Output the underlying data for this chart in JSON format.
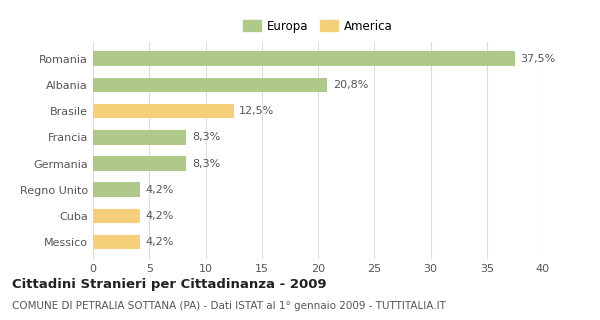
{
  "categories": [
    "Romania",
    "Albania",
    "Brasile",
    "Francia",
    "Germania",
    "Regno Unito",
    "Cuba",
    "Messico"
  ],
  "values": [
    37.5,
    20.8,
    12.5,
    8.3,
    8.3,
    4.2,
    4.2,
    4.2
  ],
  "labels": [
    "37,5%",
    "20,8%",
    "12,5%",
    "8,3%",
    "8,3%",
    "4,2%",
    "4,2%",
    "4,2%"
  ],
  "colors": [
    "#aec98a",
    "#aec98a",
    "#f5cf7a",
    "#aec98a",
    "#aec98a",
    "#aec98a",
    "#f5cf7a",
    "#f5cf7a"
  ],
  "europa_color": "#aec98a",
  "america_color": "#f5cf7a",
  "xlim": [
    0,
    40
  ],
  "xticks": [
    0,
    5,
    10,
    15,
    20,
    25,
    30,
    35,
    40
  ],
  "title": "Cittadini Stranieri per Cittadinanza - 2009",
  "subtitle": "COMUNE DI PETRALIA SOTTANA (PA) - Dati ISTAT al 1° gennaio 2009 - TUTTITALIA.IT",
  "legend_europa": "Europa",
  "legend_america": "America",
  "background_color": "#ffffff",
  "grid_color": "#dddddd",
  "bar_height": 0.55,
  "label_fontsize": 8,
  "tick_fontsize": 8,
  "title_fontsize": 9.5,
  "subtitle_fontsize": 7.5
}
